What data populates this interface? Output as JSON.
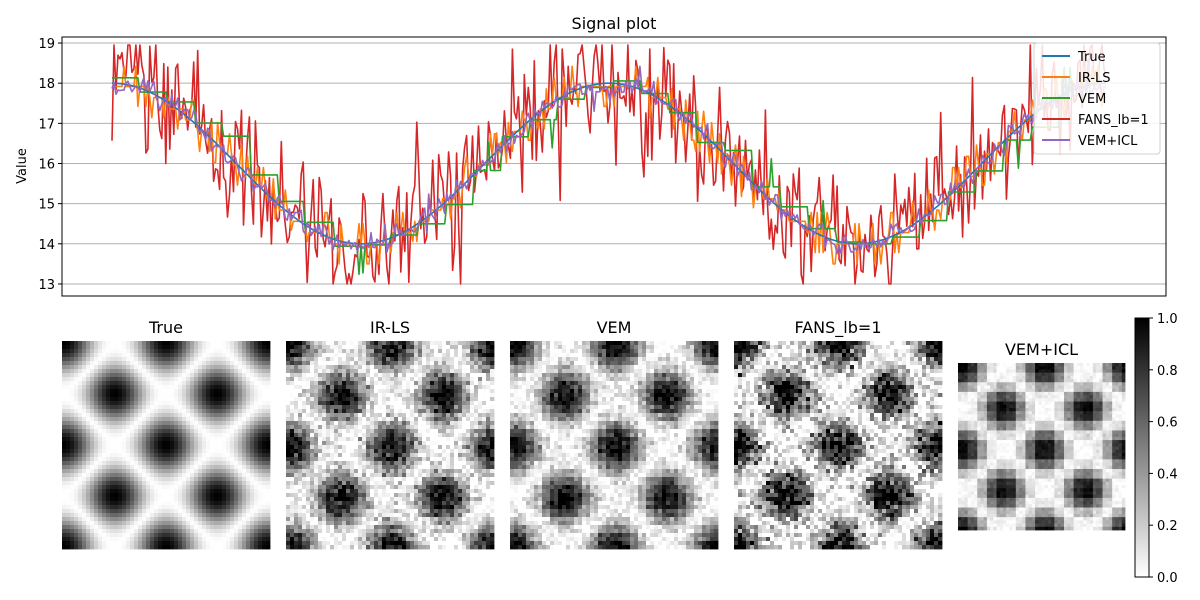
{
  "chart_data": [
    {
      "type": "line",
      "title": "Signal plot",
      "xlabel": "",
      "ylabel": "Value",
      "ylim": [
        12.7,
        19.15
      ],
      "yticks": [
        13,
        14,
        15,
        16,
        17,
        18,
        19
      ],
      "x_range": [
        0,
        499
      ],
      "grid": "y",
      "legend_position": "top-right",
      "series": [
        {
          "name": "True",
          "color": "#1f77b4",
          "kind": "true"
        },
        {
          "name": "IR-LS",
          "color": "#ff7f0e",
          "kind": "irls"
        },
        {
          "name": "VEM",
          "color": "#2ca02c",
          "kind": "vem"
        },
        {
          "name": "FANS_lb=1",
          "color": "#d62728",
          "kind": "fans"
        },
        {
          "name": "VEM+ICL",
          "color": "#9467bd",
          "kind": "vemicl"
        }
      ],
      "signal_model": {
        "center": 16,
        "amplitude": 2,
        "cycles": 2,
        "n_points": 500
      }
    },
    {
      "type": "heatmap",
      "panels": [
        {
          "title": "True",
          "noise": 0.0,
          "block": 1
        },
        {
          "title": "IR-LS",
          "noise": 0.12,
          "block": 8
        },
        {
          "title": "VEM",
          "noise": 0.08,
          "block": 6
        },
        {
          "title": "FANS_lb=1",
          "noise": 0.2,
          "block": 2
        },
        {
          "title": "VEM+ICL",
          "noise": 0.03,
          "block": 12
        }
      ],
      "colormap": "gray_r",
      "colorbar": {
        "min": 0.0,
        "max": 1.0,
        "ticks": [
          "0.0",
          "0.2",
          "0.4",
          "0.6",
          "0.8",
          "1.0"
        ]
      }
    }
  ]
}
